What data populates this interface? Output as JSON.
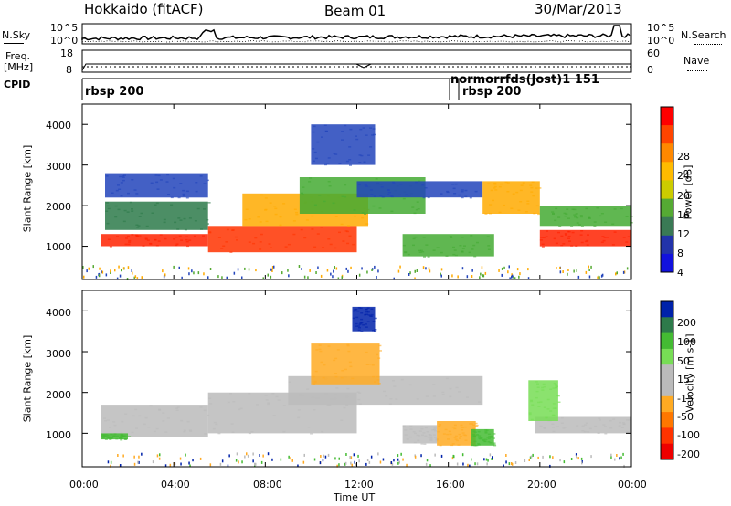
{
  "header": {
    "station": "Hokkaido (fitACF)",
    "beam": "Beam 01",
    "date": "30/Mar/2013"
  },
  "top_panels": {
    "nsky_label": "N.Sky",
    "nsearch_label": "N.Search",
    "noise_left_ticks": [
      "10^5",
      "10^0"
    ],
    "noise_right_ticks": [
      "10^5",
      "10^0"
    ],
    "freq_label": "Freq.",
    "freq_unit": "[MHz]",
    "freq_ticks": [
      "18",
      "8"
    ],
    "nave_label": "Nave",
    "nave_ticks": [
      "60",
      "0"
    ],
    "cpid_label": "CPID",
    "cpid_entries": [
      {
        "label": "rbsp 200"
      },
      {
        "label": "normorrfds(Jost)1 151"
      },
      {
        "label": "rbsp 200"
      }
    ]
  },
  "axes": {
    "xlabel": "Time UT",
    "x_ticks": [
      "00:00",
      "04:00",
      "08:00",
      "12:00",
      "16:00",
      "20:00",
      "00:00"
    ],
    "ylabel": "Slant Range [km]",
    "y_ticks": [
      "1000",
      "2000",
      "3000",
      "4000"
    ]
  },
  "colorbars": {
    "power": {
      "label": "Power [dB]",
      "ticks": [
        "28",
        "24",
        "20",
        "16",
        "12",
        "8",
        "4"
      ],
      "colors": [
        "#ff0000",
        "#ff4400",
        "#ff8800",
        "#ffbb00",
        "#cccc00",
        "#55aa33",
        "#3a7a55",
        "#2233aa",
        "#1111dd"
      ]
    },
    "velocity": {
      "label": "Velocity [m s-1]",
      "ticks": [
        "200",
        "100",
        "50",
        "15",
        "-15",
        "-50",
        "-100",
        "-200"
      ],
      "colors": [
        "#0022aa",
        "#2d7a4a",
        "#44bb33",
        "#77dd55",
        "#bbbbbb",
        "#bbbbbb",
        "#ffaa22",
        "#ff7700",
        "#ff3300",
        "#ee0000"
      ]
    }
  },
  "chart_data": [
    {
      "type": "heatmap",
      "panel": "power",
      "x_range": [
        "00:00",
        "24:00"
      ],
      "ylim": [
        180,
        4500
      ],
      "regions": [
        {
          "x": [
            0.8,
            5.5
          ],
          "y": [
            1000,
            1300
          ],
          "level": "#ff2200"
        },
        {
          "x": [
            1.0,
            5.5
          ],
          "y": [
            1400,
            2100
          ],
          "level": "#2d7a4a"
        },
        {
          "x": [
            1.0,
            5.5
          ],
          "y": [
            2200,
            2800
          ],
          "level": "#2244bb"
        },
        {
          "x": [
            5.5,
            12.0
          ],
          "y": [
            850,
            1500
          ],
          "level": "#ff3300"
        },
        {
          "x": [
            7.0,
            12.5
          ],
          "y": [
            1500,
            2300
          ],
          "level": "#ffaa00"
        },
        {
          "x": [
            9.5,
            15.0
          ],
          "y": [
            1800,
            2700
          ],
          "level": "#44aa33"
        },
        {
          "x": [
            10.0,
            12.8
          ],
          "y": [
            3000,
            4000
          ],
          "level": "#2244bb"
        },
        {
          "x": [
            12.0,
            17.5
          ],
          "y": [
            2200,
            2600
          ],
          "level": "#2244bb"
        },
        {
          "x": [
            14.0,
            18.0
          ],
          "y": [
            750,
            1300
          ],
          "level": "#44aa33"
        },
        {
          "x": [
            17.5,
            20.0
          ],
          "y": [
            1800,
            2600
          ],
          "level": "#ffaa00"
        },
        {
          "x": [
            20.0,
            24.0
          ],
          "y": [
            1000,
            1400
          ],
          "level": "#ff2200"
        },
        {
          "x": [
            20.0,
            24.0
          ],
          "y": [
            1500,
            2000
          ],
          "level": "#44aa33"
        }
      ]
    },
    {
      "type": "heatmap",
      "panel": "velocity",
      "x_range": [
        "00:00",
        "24:00"
      ],
      "ylim": [
        180,
        4500
      ],
      "regions": [
        {
          "x": [
            0.8,
            5.5
          ],
          "y": [
            900,
            1700
          ],
          "level": "#bbbbbb"
        },
        {
          "x": [
            5.5,
            12.0
          ],
          "y": [
            1000,
            2000
          ],
          "level": "#bbbbbb"
        },
        {
          "x": [
            9.0,
            17.5
          ],
          "y": [
            1700,
            2400
          ],
          "level": "#bbbbbb"
        },
        {
          "x": [
            10.0,
            13.0
          ],
          "y": [
            2200,
            3200
          ],
          "level": "#ffaa22"
        },
        {
          "x": [
            14.0,
            15.5
          ],
          "y": [
            750,
            1200
          ],
          "level": "#bbbbbb"
        },
        {
          "x": [
            15.5,
            17.2
          ],
          "y": [
            700,
            1300
          ],
          "level": "#ffaa22"
        },
        {
          "x": [
            17.0,
            18.0
          ],
          "y": [
            700,
            1100
          ],
          "level": "#44bb33"
        },
        {
          "x": [
            19.8,
            24.0
          ],
          "y": [
            1000,
            1400
          ],
          "level": "#bbbbbb"
        },
        {
          "x": [
            19.5,
            20.8
          ],
          "y": [
            1300,
            2300
          ],
          "level": "#77dd55"
        },
        {
          "x": [
            11.8,
            12.8
          ],
          "y": [
            3500,
            4100
          ],
          "level": "#0022aa"
        },
        {
          "x": [
            0.8,
            2.0
          ],
          "y": [
            850,
            1000
          ],
          "level": "#44bb33"
        }
      ]
    }
  ]
}
